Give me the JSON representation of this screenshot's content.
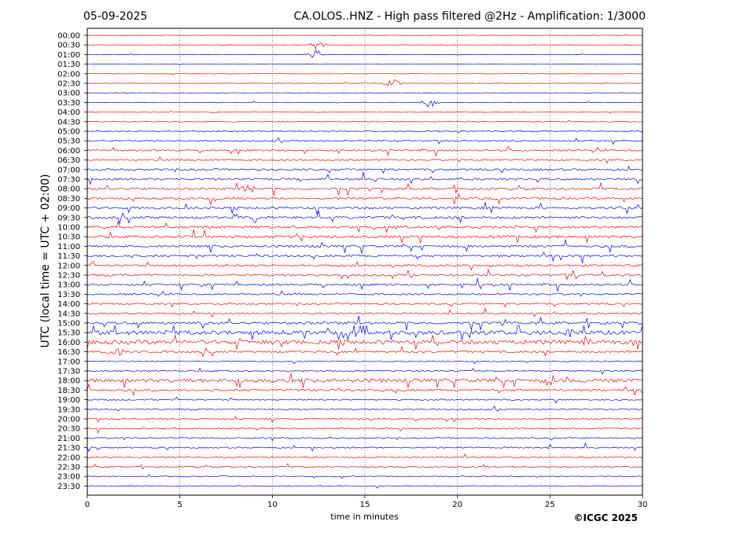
{
  "header": {
    "date": "05-09-2025",
    "station_title": "CA.OLOS..HNZ - High pass filtered @2Hz - Amplification: 1/3000"
  },
  "footer": {
    "copyright": "©ICGC 2025"
  },
  "chart_data": {
    "type": "helicorder",
    "date": "05-09-2025",
    "title": "CA.OLOS..HNZ - High pass filtered @2Hz - Amplification: 1/3000",
    "xlabel": "time in minutes",
    "ylabel": "UTC (local time = UTC + 02:00)",
    "xlim": [
      0,
      30
    ],
    "x_ticks": [
      0,
      5,
      10,
      15,
      20,
      25,
      30
    ],
    "x_tick_labels": [
      "0",
      "5",
      "10",
      "15",
      "20",
      "25",
      "30"
    ],
    "row_labels": [
      "00:00",
      "00:30",
      "01:00",
      "01:30",
      "02:00",
      "02:30",
      "03:00",
      "03:30",
      "04:00",
      "04:30",
      "05:00",
      "05:30",
      "06:00",
      "06:30",
      "07:00",
      "07:30",
      "08:00",
      "08:30",
      "09:00",
      "09:30",
      "10:00",
      "10:30",
      "11:00",
      "11:30",
      "12:00",
      "12:30",
      "13:00",
      "13:30",
      "14:00",
      "14:30",
      "15:00",
      "15:30",
      "16:00",
      "16:30",
      "17:00",
      "17:30",
      "18:00",
      "18:30",
      "19:00",
      "19:30",
      "20:00",
      "20:30",
      "21:00",
      "21:30",
      "22:00",
      "22:30",
      "23:00",
      "23:30"
    ],
    "trace_colors": [
      "#0000ff",
      "#ff0000"
    ],
    "trace_color_order": "alternating by hour: blue for hours 01,03,05,...; red for hours 00,02,04,...",
    "noise_level": [
      0.2,
      0.2,
      0.2,
      0.2,
      0.2,
      0.2,
      0.2,
      0.3,
      0.5,
      0.5,
      0.7,
      0.8,
      1.0,
      1.0,
      1.2,
      1.3,
      1.3,
      1.3,
      1.4,
      1.5,
      1.5,
      1.5,
      1.4,
      1.3,
      1.2,
      1.2,
      1.2,
      1.0,
      1.0,
      0.9,
      1.6,
      2.5,
      2.6,
      1.2,
      0.6,
      0.8,
      2.2,
      1.2,
      0.8,
      0.8,
      0.8,
      0.8,
      0.8,
      0.8,
      0.7,
      0.7,
      0.6,
      0.5
    ],
    "grid": "vertical dotted lines at 5-minute intervals",
    "notable_events": [
      {
        "row": "00:30",
        "minute": 12.4,
        "description": "spike"
      },
      {
        "row": "01:00",
        "minute": 12.3,
        "description": "large spike"
      },
      {
        "row": "02:30",
        "minute": 16.5,
        "description": "short data segment"
      },
      {
        "row": "03:30",
        "minute": 18.5,
        "description": "burst"
      },
      {
        "row": "08:00",
        "minute": 8.7,
        "description": "burst"
      },
      {
        "row": "15:30",
        "minute": 26,
        "description": "strong burst"
      },
      {
        "row": "16:00",
        "minute": 27,
        "description": "strong burst"
      },
      {
        "row": "16:30",
        "minute": 1.5,
        "description": "extended signal"
      },
      {
        "row": "18:00",
        "minute": 25,
        "description": "strong burst"
      }
    ]
  }
}
